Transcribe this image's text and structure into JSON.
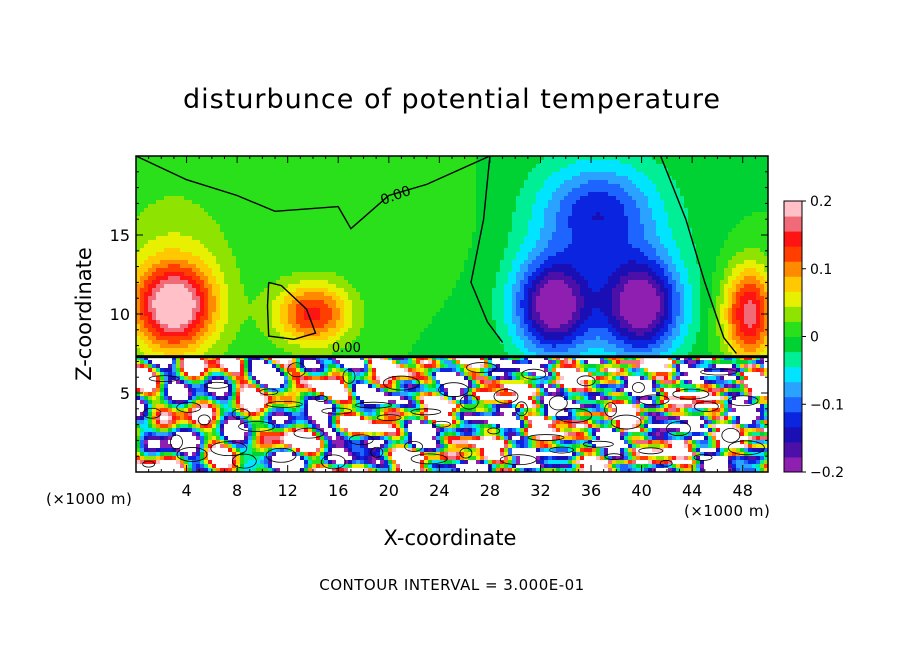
{
  "chart_data": {
    "type": "heatmap",
    "title": "disturbunce of potential temperature",
    "xlabel": "X-coordinate",
    "ylabel": "Z-coordinate",
    "x_unit_left": "(×1000 m)",
    "x_unit_right": "(×1000 m)",
    "x_range": [
      0,
      50
    ],
    "y_range": [
      0,
      20
    ],
    "x_ticks": [
      4,
      8,
      12,
      16,
      20,
      24,
      28,
      32,
      36,
      40,
      44,
      48
    ],
    "y_ticks": [
      5,
      10,
      15
    ],
    "contour_label": "0.00",
    "contour_interval_text": "CONTOUR INTERVAL = 3.000E-01",
    "colorbar": {
      "min": -0.2,
      "max": 0.2,
      "tick_values": [
        -0.2,
        -0.1,
        0,
        0.1,
        0.2
      ],
      "tick_labels": [
        "−0.2",
        "−0.1",
        "0",
        "0.1",
        "0.2"
      ],
      "colors": [
        "#8e1fb0",
        "#4c0fa8",
        "#1a0fb5",
        "#0a24e0",
        "#1e64ff",
        "#2aa2ff",
        "#00e4ff",
        "#00ee96",
        "#00d234",
        "#29e01a",
        "#8ee400",
        "#e6f000",
        "#ffc800",
        "#ff8a00",
        "#ff3e00",
        "#ff1414",
        "#f06a78",
        "#ffc0c8"
      ]
    },
    "field_features": [
      {
        "x": 3,
        "z": 10.5,
        "value": 0.18,
        "rx": 3.0,
        "rz": 2.5
      },
      {
        "x": 14,
        "z": 10.0,
        "value": 0.14,
        "rx": 3.0,
        "rz": 2.0
      },
      {
        "x": 48.5,
        "z": 10.0,
        "value": 0.17,
        "rx": 2.0,
        "rz": 3.0
      },
      {
        "x": 33,
        "z": 10.5,
        "value": -0.19,
        "rx": 3.0,
        "rz": 3.0
      },
      {
        "x": 40,
        "z": 10.5,
        "value": -0.19,
        "rx": 3.0,
        "rz": 3.0
      },
      {
        "x": 36.5,
        "z": 16.5,
        "value": -0.1,
        "rx": 4.5,
        "rz": 3.0
      },
      {
        "x": 22,
        "z": 16.0,
        "value": 0.01,
        "rx": 6.0,
        "rz": 4.0
      }
    ],
    "boundary_layer_top": 7.3
  }
}
